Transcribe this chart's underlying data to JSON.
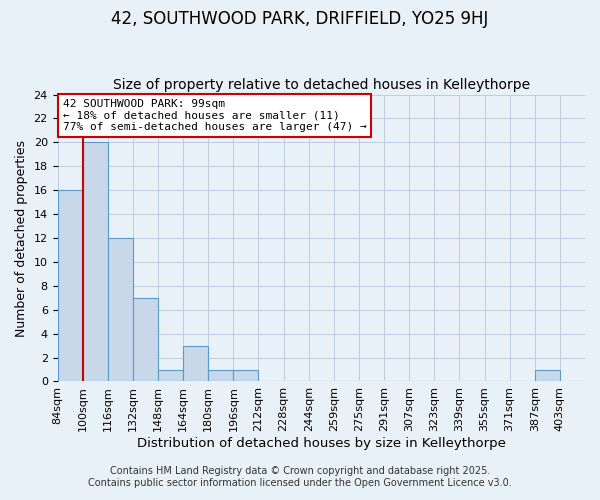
{
  "title": "42, SOUTHWOOD PARK, DRIFFIELD, YO25 9HJ",
  "subtitle": "Size of property relative to detached houses in Kelleythorpe",
  "xlabel": "Distribution of detached houses by size in Kelleythorpe",
  "ylabel": "Number of detached properties",
  "bin_labels": [
    "84sqm",
    "100sqm",
    "116sqm",
    "132sqm",
    "148sqm",
    "164sqm",
    "180sqm",
    "196sqm",
    "212sqm",
    "228sqm",
    "244sqm",
    "259sqm",
    "275sqm",
    "291sqm",
    "307sqm",
    "323sqm",
    "339sqm",
    "355sqm",
    "371sqm",
    "387sqm",
    "403sqm"
  ],
  "bin_counts": [
    16,
    20,
    12,
    7,
    1,
    3,
    1,
    1,
    0,
    0,
    0,
    0,
    0,
    0,
    0,
    0,
    0,
    0,
    0,
    1,
    0
  ],
  "bar_color": "#c8d8e8",
  "bar_edge_color": "#5a9ac8",
  "marker_line_color": "#cc0000",
  "ylim": [
    0,
    24
  ],
  "yticks": [
    0,
    2,
    4,
    6,
    8,
    10,
    12,
    14,
    16,
    18,
    20,
    22,
    24
  ],
  "annotation_title": "42 SOUTHWOOD PARK: 99sqm",
  "annotation_line1": "← 18% of detached houses are smaller (11)",
  "annotation_line2": "77% of semi-detached houses are larger (47) →",
  "annotation_box_color": "#ffffff",
  "annotation_box_edge": "#cc0000",
  "background_color": "#e8f0f8",
  "footer1": "Contains HM Land Registry data © Crown copyright and database right 2025.",
  "footer2": "Contains public sector information licensed under the Open Government Licence v3.0.",
  "title_fontsize": 12,
  "subtitle_fontsize": 10,
  "xlabel_fontsize": 9.5,
  "ylabel_fontsize": 9,
  "footer_fontsize": 7,
  "annotation_fontsize": 8,
  "tick_fontsize": 8,
  "ytick_fontsize": 8
}
